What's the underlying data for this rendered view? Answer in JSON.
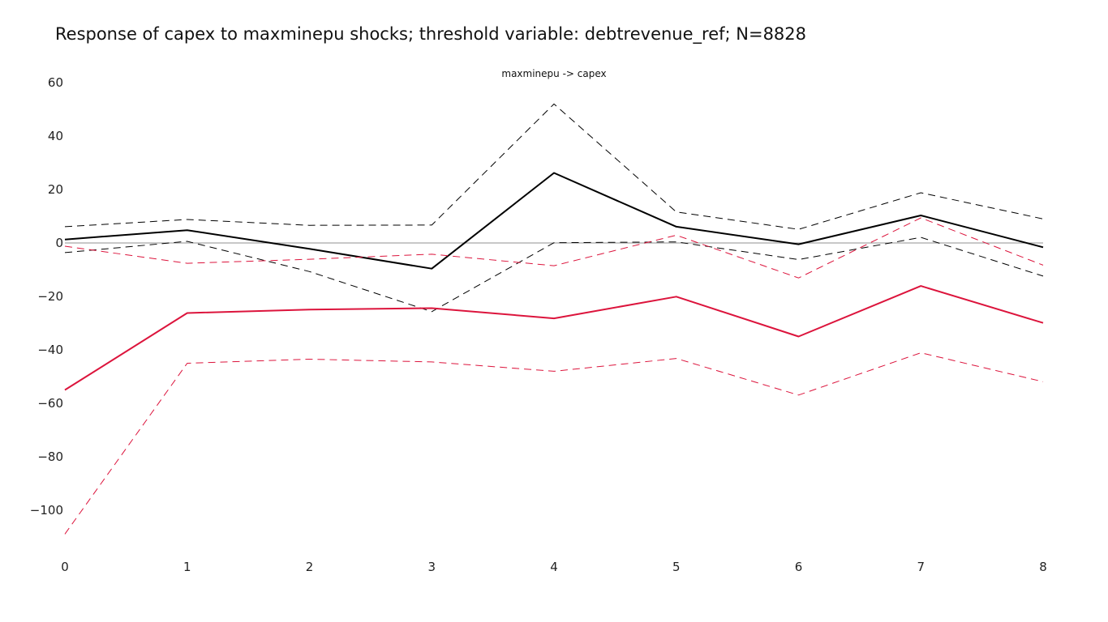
{
  "title": "Response of capex to maxminepu shocks; threshold variable: debtrevenue_ref; N=8828",
  "subplot_title": "maxminepu -> capex",
  "chart_data": {
    "type": "line",
    "title": "Response of capex to maxminepu shocks; threshold variable: debtrevenue_ref; N=8828",
    "subtitle": "maxminepu -> capex",
    "x": [
      0,
      1,
      2,
      3,
      4,
      5,
      6,
      7,
      8
    ],
    "xlim": [
      0,
      8
    ],
    "ylim": [
      -116,
      62
    ],
    "x_ticks": [
      "0",
      "1",
      "2",
      "3",
      "4",
      "5",
      "6",
      "7",
      "8"
    ],
    "y_ticks": [
      60,
      40,
      20,
      0,
      -20,
      -40,
      -60,
      -80,
      -100
    ],
    "y_tick_labels": [
      "60",
      "40",
      "20",
      "0",
      "−20",
      "−40",
      "−60",
      "−80",
      "−100"
    ],
    "grid": false,
    "zero_line": true,
    "series": [
      {
        "color": "#000000",
        "dash": "solid",
        "values": [
          1.3,
          4.8,
          -2.2,
          -9.6,
          26.2,
          6.1,
          -0.5,
          10.3,
          -1.6
        ]
      },
      {
        "color": "#000000",
        "dash": "dashed",
        "values": [
          6.1,
          8.8,
          6.6,
          6.7,
          52.0,
          11.6,
          5.1,
          18.8,
          9.0
        ]
      },
      {
        "color": "#000000",
        "dash": "dashed",
        "values": [
          -3.6,
          0.6,
          -10.7,
          -25.7,
          0.1,
          0.4,
          -6.2,
          2.1,
          -12.4
        ]
      },
      {
        "color": "#dc143c",
        "dash": "solid",
        "values": [
          -55.0,
          -26.2,
          -24.9,
          -24.4,
          -28.2,
          -20.1,
          -35.0,
          -16.1,
          -29.9
        ]
      },
      {
        "color": "#dc143c",
        "dash": "dashed",
        "values": [
          -1.2,
          -7.6,
          -6.1,
          -4.2,
          -8.5,
          2.9,
          -13.1,
          9.4,
          -8.3
        ]
      },
      {
        "color": "#dc143c",
        "dash": "dashed",
        "values": [
          -108.9,
          -45.0,
          -43.5,
          -44.5,
          -48.0,
          -43.2,
          -56.9,
          -41.1,
          -51.9
        ]
      }
    ]
  }
}
